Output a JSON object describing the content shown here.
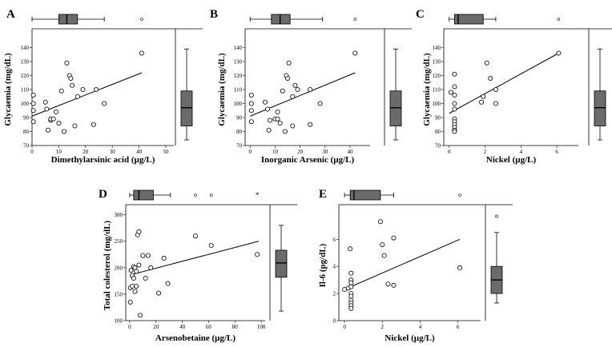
{
  "chart_data": [
    {
      "id": "A",
      "panel_label": "A",
      "type": "scatter",
      "xlabel": "Dimethylarsinic acid (µg/L)",
      "ylabel": "Glycaemia (mg/dL)",
      "xlim": [
        0,
        53
      ],
      "ylim": [
        70,
        150
      ],
      "xticks": [
        0,
        10,
        20,
        30,
        40,
        50
      ],
      "xtick_labels": [
        "0",
        "10",
        "20",
        "30",
        "40",
        "50"
      ],
      "yticks": [
        70,
        80,
        90,
        100,
        110,
        120,
        130,
        140
      ],
      "ytick_labels": [
        "70",
        "80",
        "90",
        "100",
        "110",
        "120",
        "130",
        "140"
      ],
      "points": [
        [
          0.5,
          106
        ],
        [
          0.5,
          100
        ],
        [
          0.5,
          95
        ],
        [
          0.5,
          87
        ],
        [
          5,
          101
        ],
        [
          5.5,
          96
        ],
        [
          6,
          81
        ],
        [
          7,
          88
        ],
        [
          7,
          89
        ],
        [
          8,
          89
        ],
        [
          9,
          94
        ],
        [
          10,
          86
        ],
        [
          11,
          109
        ],
        [
          12,
          80
        ],
        [
          13,
          129
        ],
        [
          14,
          120
        ],
        [
          14.5,
          118
        ],
        [
          15,
          113
        ],
        [
          16,
          84
        ],
        [
          17,
          105
        ],
        [
          19,
          110
        ],
        [
          23,
          85
        ],
        [
          24,
          110
        ],
        [
          27,
          100
        ],
        [
          41,
          136
        ]
      ],
      "fit": {
        "x": [
          0,
          41
        ],
        "y": [
          91,
          122
        ]
      },
      "box_x": {
        "min": 0,
        "q1": 10,
        "median": 13,
        "q3": 17,
        "max": 27,
        "outliers": [
          41
        ]
      },
      "box_y": {
        "min": 74,
        "q1": 84,
        "median": 97,
        "q3": 109,
        "max": 139,
        "outliers": []
      }
    },
    {
      "id": "B",
      "panel_label": "B",
      "type": "scatter",
      "xlabel": "Inorganic Arsenic (µg/L)",
      "ylabel": "Glycaemia (mg/dL)",
      "xlim": [
        -2,
        48
      ],
      "ylim": [
        70,
        150
      ],
      "xticks": [
        0,
        10,
        20,
        30,
        40
      ],
      "xtick_labels": [
        "0",
        "10",
        "20",
        "30",
        "40"
      ],
      "yticks": [
        70,
        80,
        90,
        100,
        110,
        120,
        130,
        140
      ],
      "ytick_labels": [
        "70",
        "80",
        "90",
        "100",
        "110",
        "120",
        "130",
        "140"
      ],
      "points": [
        [
          0.5,
          106
        ],
        [
          0.5,
          100
        ],
        [
          0.5,
          95
        ],
        [
          0.5,
          87
        ],
        [
          6,
          101
        ],
        [
          7,
          96
        ],
        [
          7.5,
          81
        ],
        [
          8,
          88
        ],
        [
          10,
          89
        ],
        [
          11,
          89
        ],
        [
          11,
          94
        ],
        [
          12,
          86
        ],
        [
          13,
          109
        ],
        [
          14,
          80
        ],
        [
          14.5,
          120
        ],
        [
          15,
          118
        ],
        [
          15.5,
          129
        ],
        [
          17,
          105
        ],
        [
          18,
          113
        ],
        [
          19,
          110
        ],
        [
          17,
          84
        ],
        [
          24,
          110
        ],
        [
          24,
          85
        ],
        [
          28,
          100
        ],
        [
          42,
          136
        ]
      ],
      "fit": {
        "x": [
          0,
          42
        ],
        "y": [
          91,
          122
        ]
      },
      "box_x": {
        "min": 0,
        "q1": 8.5,
        "median": 12,
        "q3": 16,
        "max": 29,
        "outliers": [
          42
        ]
      },
      "box_y": {
        "min": 74,
        "q1": 84,
        "median": 97,
        "q3": 109,
        "max": 139,
        "outliers": []
      }
    },
    {
      "id": "C",
      "panel_label": "C",
      "type": "scatter",
      "xlabel": "Nickel (µg/L)",
      "ylabel": "Glycaemia (mg/dL)",
      "xlim": [
        -0.3,
        7.2
      ],
      "ylim": [
        70,
        150
      ],
      "xticks": [
        0,
        2,
        4,
        6
      ],
      "xtick_labels": [
        "0",
        "2",
        "4",
        "6"
      ],
      "yticks": [
        70,
        80,
        90,
        100,
        110,
        120,
        130,
        140
      ],
      "ytick_labels": [
        "70",
        "80",
        "90",
        "100",
        "110",
        "120",
        "130",
        "140"
      ],
      "points": [
        [
          0.1,
          108
        ],
        [
          0.3,
          121
        ],
        [
          0.3,
          112
        ],
        [
          0.3,
          106
        ],
        [
          0.3,
          100
        ],
        [
          0.3,
          96
        ],
        [
          0.3,
          89
        ],
        [
          0.3,
          87
        ],
        [
          0.3,
          85
        ],
        [
          0.3,
          83
        ],
        [
          0.3,
          81
        ],
        [
          0.3,
          80
        ],
        [
          1.8,
          101
        ],
        [
          1.9,
          105
        ],
        [
          2.1,
          129
        ],
        [
          2.3,
          118
        ],
        [
          2.6,
          110
        ],
        [
          2.6,
          100
        ],
        [
          6.1,
          136
        ]
      ],
      "fit": {
        "x": [
          0,
          6.1
        ],
        "y": [
          93,
          136
        ]
      },
      "box_x": {
        "min": 0,
        "q1": 0.3,
        "median": 0.5,
        "q3": 1.9,
        "max": 2.6,
        "outliers": [
          6.1
        ]
      },
      "box_y": {
        "min": 74,
        "q1": 84,
        "median": 97,
        "q3": 109,
        "max": 139,
        "outliers": []
      }
    },
    {
      "id": "D",
      "panel_label": "D",
      "type": "scatter",
      "xlabel": "Arsenobetaine (µg/L)",
      "ylabel": "Total colesterol (mg/dL)",
      "xlim": [
        -3,
        103
      ],
      "ylim": [
        100,
        310
      ],
      "xticks": [
        0,
        20,
        40,
        60,
        80,
        100
      ],
      "xtick_labels": [
        "0",
        "20",
        "40",
        "60",
        "80",
        "100"
      ],
      "yticks": [
        100,
        150,
        200,
        250,
        300
      ],
      "ytick_labels": [
        "100",
        "150",
        "200",
        "250",
        "300"
      ],
      "points": [
        [
          0.5,
          162
        ],
        [
          0.5,
          135
        ],
        [
          1,
          195
        ],
        [
          2,
          185
        ],
        [
          2,
          165
        ],
        [
          3,
          202
        ],
        [
          3,
          180
        ],
        [
          4,
          200
        ],
        [
          4,
          155
        ],
        [
          5,
          193
        ],
        [
          5,
          165
        ],
        [
          6,
          262
        ],
        [
          7,
          268
        ],
        [
          7,
          205
        ],
        [
          8,
          110
        ],
        [
          10,
          223
        ],
        [
          12,
          180
        ],
        [
          14,
          223
        ],
        [
          16,
          200
        ],
        [
          22,
          152
        ],
        [
          26,
          218
        ],
        [
          29,
          170
        ],
        [
          50,
          260
        ],
        [
          62,
          242
        ],
        [
          97,
          225
        ]
      ],
      "fit": {
        "x": [
          0,
          98
        ],
        "y": [
          186,
          250
        ]
      },
      "box_x": {
        "min": 0,
        "q1": 3,
        "median": 7,
        "q3": 18,
        "max": 31,
        "outliers": [
          50,
          62
        ],
        "extremes": [
          97
        ]
      },
      "box_y": {
        "min": 118,
        "q1": 182,
        "median": 209,
        "q3": 233,
        "max": 280,
        "outliers": []
      }
    },
    {
      "id": "E",
      "panel_label": "E",
      "type": "scatter",
      "xlabel": "Nickel (µg/L)",
      "ylabel": "Il-6 (pg/dL)",
      "xlim": [
        -0.3,
        7.2
      ],
      "ylim": [
        0,
        8.2
      ],
      "xticks": [
        0,
        2,
        4,
        6
      ],
      "xtick_labels": [
        "0",
        "2",
        "4",
        "6"
      ],
      "yticks": [
        0,
        2,
        4,
        6
      ],
      "ytick_labels": [
        "0",
        "2",
        "4",
        "6"
      ],
      "points": [
        [
          0,
          2.3
        ],
        [
          0.2,
          2.4
        ],
        [
          0.3,
          5.3
        ],
        [
          0.35,
          3.5
        ],
        [
          0.35,
          3.0
        ],
        [
          0.35,
          2.8
        ],
        [
          0.35,
          2.5
        ],
        [
          0.35,
          2.0
        ],
        [
          0.35,
          1.8
        ],
        [
          0.35,
          1.5
        ],
        [
          0.35,
          1.3
        ],
        [
          0.35,
          1.1
        ],
        [
          0.35,
          0.9
        ],
        [
          1.9,
          7.3
        ],
        [
          2.0,
          5.6
        ],
        [
          2.1,
          4.8
        ],
        [
          2.3,
          2.7
        ],
        [
          2.6,
          6.1
        ],
        [
          2.6,
          2.6
        ],
        [
          6.1,
          3.9
        ]
      ],
      "fit": {
        "x": [
          0,
          6.1
        ],
        "y": [
          2.3,
          6.0
        ]
      },
      "box_x": {
        "min": 0,
        "q1": 0.3,
        "median": 0.5,
        "q3": 1.9,
        "max": 2.6,
        "outliers": [
          6.1
        ]
      },
      "box_y": {
        "min": 1.3,
        "q1": 2.0,
        "median": 3.0,
        "q3": 4.0,
        "max": 6.5,
        "outliers": [
          7.7
        ]
      }
    }
  ]
}
